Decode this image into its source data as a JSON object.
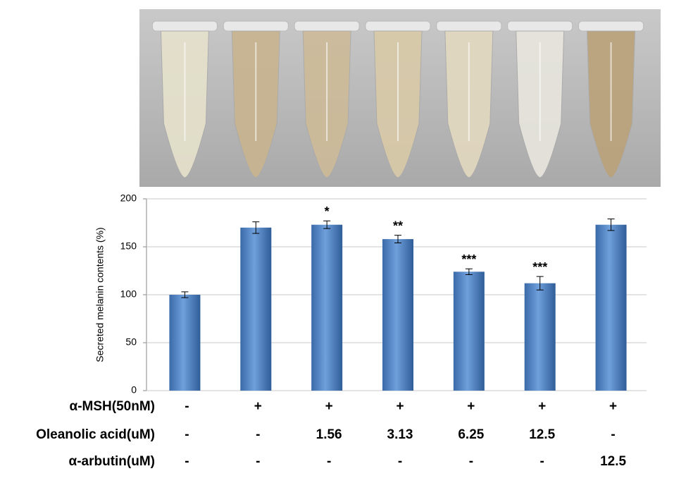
{
  "chart_data": {
    "type": "bar",
    "y_label": "Secreted melanin contents (%)",
    "ylim": [
      0,
      200
    ],
    "yticks": [
      0,
      50,
      100,
      150,
      200
    ],
    "grid": true,
    "color": "#4a7ebb",
    "values": [
      100,
      170,
      173,
      158,
      124,
      112,
      173
    ],
    "errors": [
      3,
      6,
      4,
      4,
      3,
      7,
      6
    ],
    "annotations": [
      null,
      null,
      "*",
      "**",
      "***",
      "***",
      null
    ],
    "treatments": [
      {
        "label": "α-MSH(50nM)",
        "values": [
          "-",
          "+",
          "+",
          "+",
          "+",
          "+",
          "+"
        ]
      },
      {
        "label": "Oleanolic acid(uM)",
        "values": [
          "-",
          "-",
          "1.56",
          "3.13",
          "6.25",
          "12.5",
          "-"
        ]
      },
      {
        "label": "α-arbutin(uM)",
        "values": [
          "-",
          "-",
          "-",
          "-",
          "-",
          "-",
          "12.5"
        ]
      }
    ]
  }
}
